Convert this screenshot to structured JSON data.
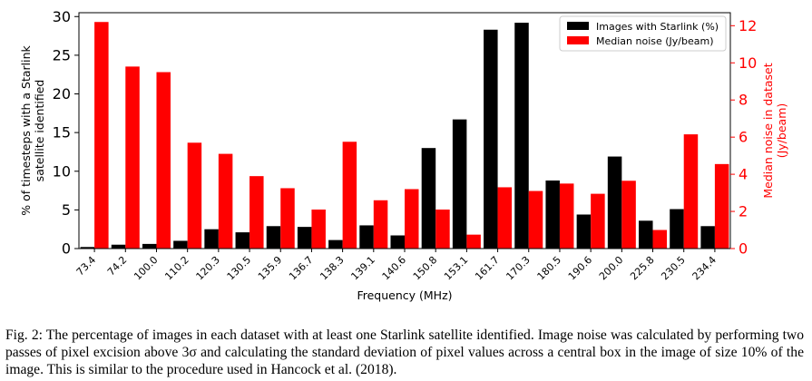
{
  "chart_data": {
    "type": "bar",
    "title": "",
    "xlabel": "Frequency (MHz)",
    "ylabel_left": "% of timesteps with a Starlink satellite identified",
    "ylabel_left_lines": [
      "% of timesteps with a Starlink",
      "satellite identified"
    ],
    "ylabel_right": "Median noise in dataset (Jy/beam)",
    "ylabel_right_lines": [
      "Median noise in dataset",
      "(Jy/beam)"
    ],
    "categories": [
      "73.4",
      "74.2",
      "100.0",
      "110.2",
      "120.3",
      "130.5",
      "135.9",
      "136.7",
      "138.3",
      "139.1",
      "140.6",
      "150.8",
      "153.1",
      "161.7",
      "170.3",
      "180.5",
      "190.6",
      "200.0",
      "225.8",
      "230.5",
      "234.4"
    ],
    "ylim_left": [
      0,
      30.5
    ],
    "yticks_left": [
      0,
      5,
      10,
      15,
      20,
      25,
      30
    ],
    "ylim_right": [
      0,
      12.7
    ],
    "yticks_right": [
      0,
      2,
      4,
      6,
      8,
      10,
      12
    ],
    "legend_position": "top-right",
    "grid": false,
    "series": [
      {
        "name": "Images with Starlink (%)",
        "axis": "left",
        "color": "#000000",
        "values": [
          0.2,
          0.5,
          0.6,
          1.0,
          2.5,
          2.1,
          2.9,
          2.8,
          1.1,
          3.0,
          1.7,
          13.0,
          16.7,
          28.3,
          29.2,
          8.8,
          4.4,
          11.9,
          3.6,
          5.1,
          2.9
        ]
      },
      {
        "name": "Median noise (Jy/beam)",
        "axis": "right",
        "color": "#ff0000",
        "values": [
          12.2,
          9.8,
          9.5,
          5.7,
          5.1,
          3.9,
          3.25,
          2.1,
          5.75,
          2.6,
          3.2,
          2.1,
          0.75,
          3.3,
          3.1,
          3.5,
          2.95,
          3.65,
          1.0,
          6.15,
          4.55
        ]
      }
    ]
  },
  "caption": "Fig. 2:  The percentage of images in each dataset with at least one Starlink satellite identified. Image noise was calculated by performing two passes of pixel excision above 3σ and calculating the standard deviation of pixel values across a central box in the image of size 10% of the image. This is similar to the procedure used in Hancock et al. (2018)."
}
